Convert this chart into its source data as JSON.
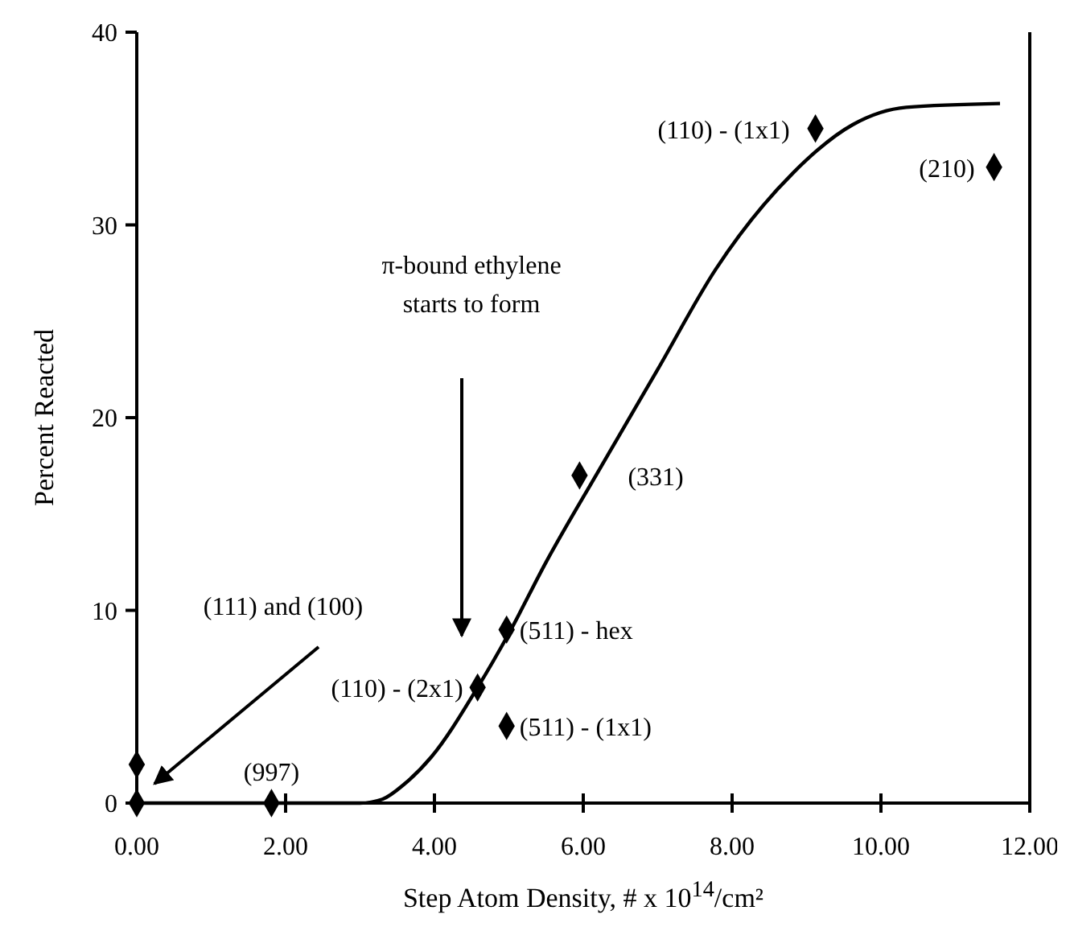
{
  "chart_data": {
    "type": "scatter",
    "xlabel": "Step Atom Density, # x 10$^{14}$/cm²",
    "ylabel": "Percent Reacted",
    "xlim": [
      0,
      12
    ],
    "xticks": [
      {
        "value": 0,
        "label": "0.00"
      },
      {
        "value": 2,
        "label": "2.00"
      },
      {
        "value": 4,
        "label": "4.00"
      },
      {
        "value": 6,
        "label": "6.00"
      },
      {
        "value": 8,
        "label": "8.00"
      },
      {
        "value": 10,
        "label": "10.00"
      },
      {
        "value": 12,
        "label": "12.00"
      }
    ],
    "ylim": [
      0,
      40
    ],
    "yticks": [
      0,
      10,
      20,
      30,
      40
    ],
    "grid": false,
    "series": [
      {
        "color": "#000000",
        "marker": "diamond",
        "x": [
          0,
          0,
          1.81,
          4.58,
          4.97,
          4.97,
          5.95,
          9.12,
          11.52
        ],
        "values": [
          0,
          2,
          0,
          6,
          9,
          4,
          17,
          35,
          33
        ]
      },
      {
        "type": "line",
        "color": "#000000",
        "marker": "none",
        "line_style": "solid",
        "x": [
          0,
          3.0,
          3.3,
          3.6,
          3.96,
          4.58,
          5.0,
          5.5,
          6.2,
          7.0,
          7.78,
          8.82,
          9.62,
          10.34,
          11.6
        ],
        "values": [
          0,
          0,
          0.2,
          1,
          2.4,
          6,
          8.8,
          12.5,
          17.2,
          22.5,
          27.7,
          32.7,
          35.2,
          36.1,
          36.3
        ]
      }
    ],
    "annotations": [
      {
        "text": "(997)",
        "x": 1.81,
        "y": 0
      },
      {
        "text": "(110) - (2x1)",
        "x": 4.58,
        "y": 6
      },
      {
        "text": "(511) - hex",
        "x": 4.97,
        "y": 9
      },
      {
        "text": "(511) - (1x1)",
        "x": 4.97,
        "y": 4
      },
      {
        "text": "(331)",
        "x": 5.95,
        "y": 17
      },
      {
        "text": "(110) - (1x1)",
        "x": 9.12,
        "y": 35
      },
      {
        "text": "(210)",
        "x": 11.52,
        "y": 33
      },
      "(111) and (100)",
      "π-bound ethylene\nstarts to form"
    ]
  }
}
